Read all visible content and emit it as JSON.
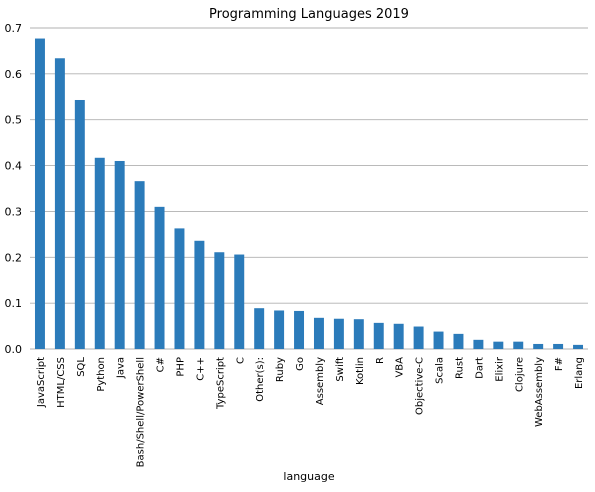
{
  "chart_data": {
    "type": "bar",
    "title": "Programming Languages 2019",
    "xlabel": "language",
    "ylabel": "",
    "ylim": [
      0,
      0.7
    ],
    "yticks": [
      "0.0",
      "0.1",
      "0.2",
      "0.3",
      "0.4",
      "0.5",
      "0.6",
      "0.7"
    ],
    "grid": "horizontal",
    "bar_color": "#2b7bba",
    "categories": [
      "JavaScript",
      "HTML/CSS",
      "SQL",
      "Python",
      "Java",
      "Bash/Shell/PowerShell",
      "C#",
      "PHP",
      "C++",
      "TypeScript",
      "C",
      "Other(s):",
      "Ruby",
      "Go",
      "Assembly",
      "Swift",
      "Kotlin",
      "R",
      "VBA",
      "Objective-C",
      "Scala",
      "Rust",
      "Dart",
      "Elixir",
      "Clojure",
      "WebAssembly",
      "F#",
      "Erlang"
    ],
    "values": [
      0.677,
      0.634,
      0.543,
      0.417,
      0.41,
      0.366,
      0.31,
      0.263,
      0.236,
      0.211,
      0.206,
      0.089,
      0.084,
      0.083,
      0.068,
      0.066,
      0.065,
      0.057,
      0.055,
      0.049,
      0.038,
      0.033,
      0.02,
      0.016,
      0.016,
      0.011,
      0.011,
      0.009
    ]
  }
}
